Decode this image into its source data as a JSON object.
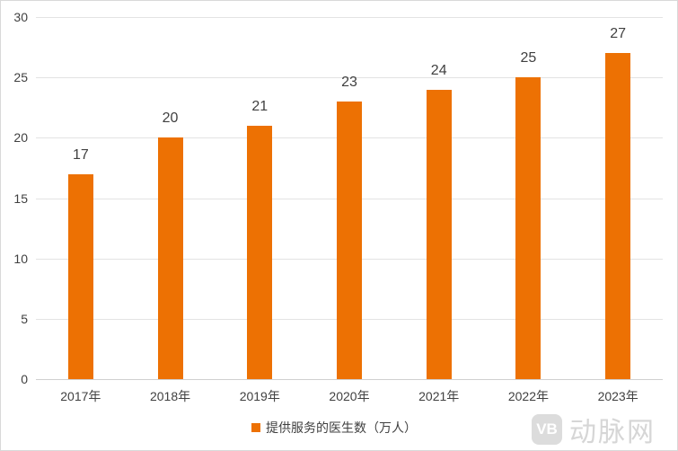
{
  "chart_data": {
    "type": "bar",
    "title": "",
    "xlabel": "",
    "ylabel": "",
    "categories": [
      "2017年",
      "2018年",
      "2019年",
      "2020年",
      "2021年",
      "2022年",
      "2023年"
    ],
    "series": [
      {
        "name": "提供服务的医生数（万人）",
        "values": [
          17,
          20,
          21,
          23,
          24,
          25,
          27
        ],
        "color": "#ED7103"
      }
    ],
    "ylim": [
      0,
      30
    ],
    "yticks": [
      0,
      5,
      10,
      15,
      20,
      25,
      30
    ],
    "grid": true,
    "data_labels": true,
    "legend_position": "bottom"
  },
  "legend": {
    "label": "提供服务的医生数（万人）"
  },
  "watermark": {
    "logo_text": "VB",
    "text": "动脉网"
  },
  "colors": {
    "bar": "#ED7103",
    "grid": "#e3e3e3",
    "text": "#404040"
  }
}
